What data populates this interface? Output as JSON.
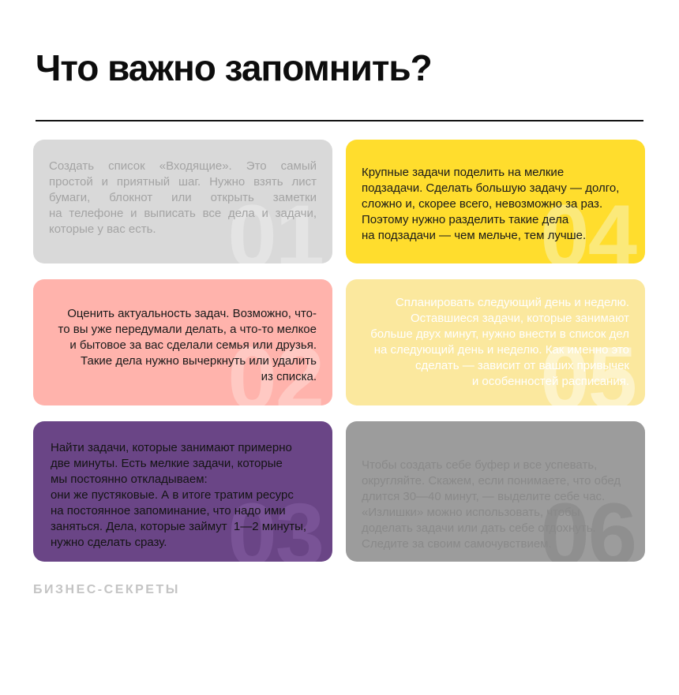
{
  "page": {
    "title": "Что важно запомнить?",
    "footer": "БИЗНЕС-СЕКРЕТЫ"
  },
  "colors": {
    "background": "#ffffff",
    "title": "#0d0d0d",
    "divider": "#111111",
    "footer": "#c4c4c4"
  },
  "cards": [
    {
      "number": "01",
      "text": "Создать список «Входящие». Это самый простой и приятный шаг. Нужно взять лист бумаги, блокнот или открыть заметки на телефоне и выписать все дела и задачи, которые у вас есть.",
      "bg": "#d9d9d9",
      "text_color": "#a4a4a4",
      "number_color": "#e4e4e4"
    },
    {
      "number": "04",
      "text": "Крупные задачи поделить на мелкие\nподзадачи. Сделать большую задачу — долго,\nсложно и, скорее всего, невозможно за раз.\nПоэтому нужно разделить такие дела\nна подзадачи — чем мельче, тем лучше.",
      "bg": "#ffdd2d",
      "text_color": "#1a1a1a",
      "number_color": "#fbe97a"
    },
    {
      "number": "02",
      "text": "Оценить актуальность задач. Возможно, что-\nто вы уже передумали делать, а что-то мелкое\nи бытовое за вас сделали семья или друзья.\nТакие дела нужно вычеркнуть или удалить\nиз списка.",
      "bg": "#ffb3ac",
      "text_color": "#1a1a1a",
      "number_color": "#ffc9c3"
    },
    {
      "number": "05",
      "text": "Спланировать следующий день и неделю.\nОставшиеся задачи, которые занимают\nбольше двух минут, нужно внести в список дел\nна следующий день и неделю. Как именно это\nсделать — зависит от ваших привычек\nи особенностей расписания.",
      "bg": "#fbe89e",
      "text_color": "#ffffff",
      "number_color": "#fdf3c9"
    },
    {
      "number": "03",
      "text": "Найти задачи, которые занимают примерно\nдве минуты. Есть мелкие задачи, которые\nмы постоянно откладываем:\nони же пустяковые. А в итоге тратим ресурс\nна постоянное запоминание, что надо ими\nзаняться. Дела, которые займут  1—2 минуты,\nнужно сделать сразу.",
      "bg": "#6a4586",
      "text_color": "#141414",
      "number_color": "#795396"
    },
    {
      "number": "06",
      "text": "Чтобы создать себе буфер и все успевать,\nокругляйте. Скажем, если понимаете, что обед\nдлится 30—40 минут, — выделите себе час.\n«Излишки» можно использовать, чтобы\nдоделать задачи или дать себе отдохнуть.\nСледите за своим самочувствием.",
      "bg": "#9c9c9c",
      "text_color": "#898989",
      "number_color": "#8f8f8f"
    }
  ]
}
